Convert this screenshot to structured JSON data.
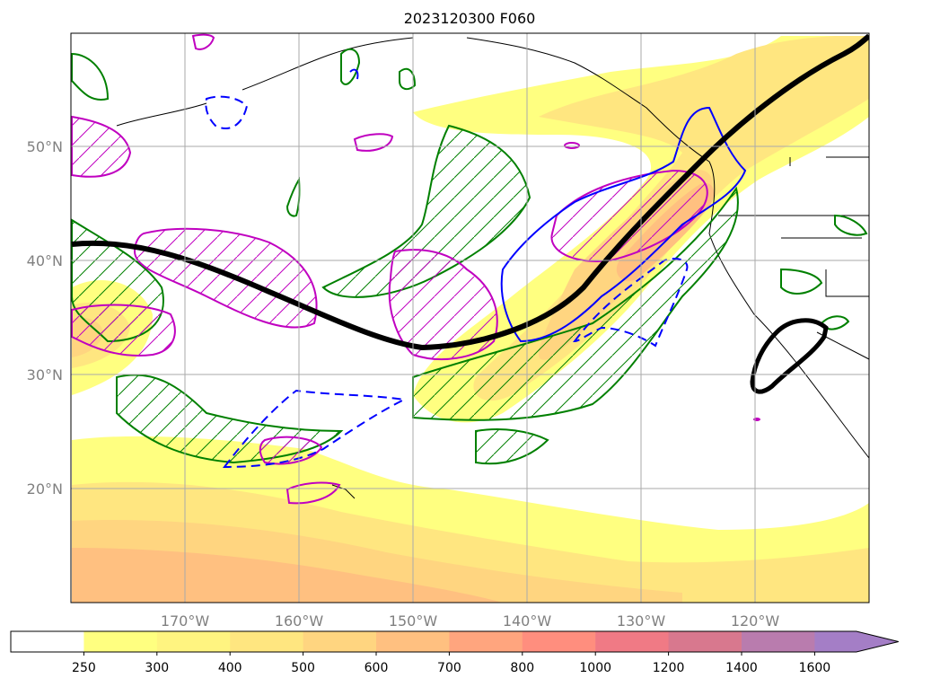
{
  "title": "2023120300 F060",
  "lat_labels": [
    "50°N",
    "40°N",
    "30°N",
    "20°N"
  ],
  "lon_labels": [
    "170°W",
    "160°W",
    "150°W",
    "140°W",
    "130°W",
    "120°W"
  ],
  "colorbar": {
    "ticks": [
      "250",
      "300",
      "400",
      "500",
      "600",
      "700",
      "800",
      "1000",
      "1200",
      "1400",
      "1600"
    ],
    "colors": [
      "#ffffff",
      "#ffff80",
      "#fff480",
      "#ffe680",
      "#ffd580",
      "#ffc080",
      "#ffa57e",
      "#ff8e7e",
      "#f07a85",
      "#d8788e",
      "#b97cae",
      "#a47ec6"
    ],
    "extend": "max"
  },
  "legend_colors": {
    "jet_axis": "#000000",
    "green_contour": "#008000",
    "magenta_contour": "#c000c0",
    "blue_contour": "#0000ff"
  },
  "grid": true
}
